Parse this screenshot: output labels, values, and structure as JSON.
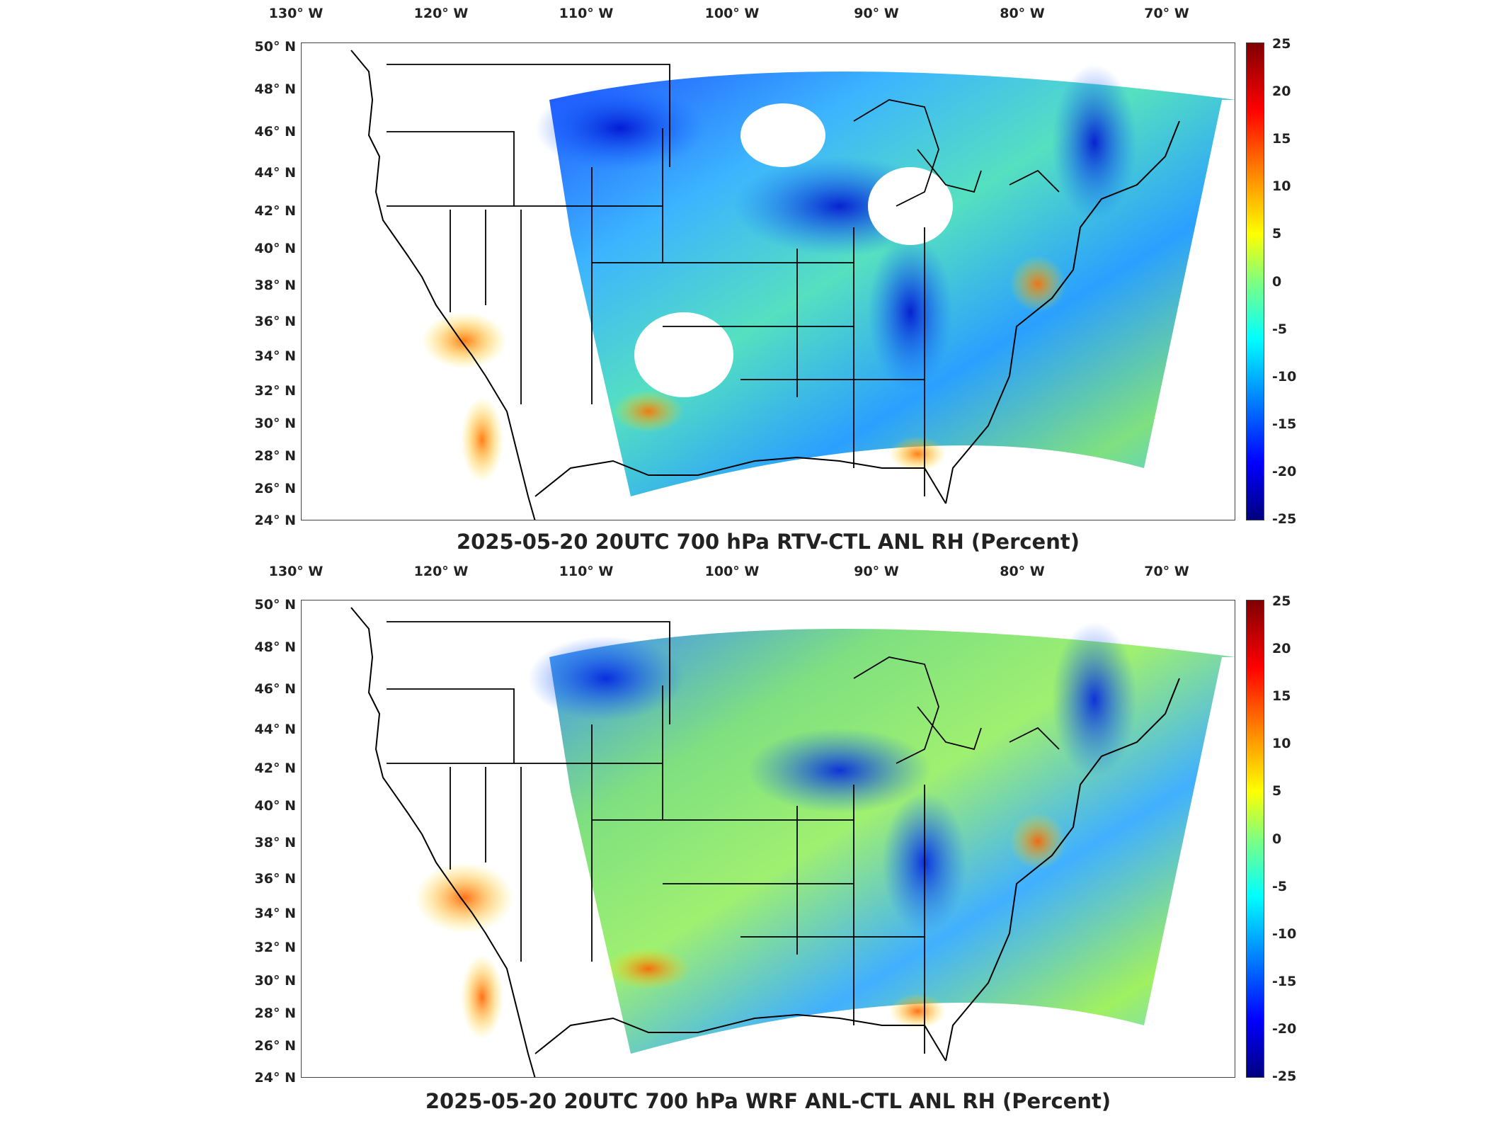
{
  "panels": [
    {
      "title": "2025-05-20 20UTC 700 hPa RTV-CTL ANL RH (Percent)",
      "lon_labels": [
        "130° W",
        "120° W",
        "110° W",
        "100° W",
        "90° W",
        "80° W",
        "70° W"
      ],
      "lat_labels": [
        "50° N",
        "48° N",
        "46° N",
        "44° N",
        "42° N",
        "40° N",
        "38° N",
        "36° N",
        "34° N",
        "32° N",
        "30° N",
        "28° N",
        "26° N",
        "24° N"
      ],
      "colorbar_labels": [
        "25",
        "20",
        "15",
        "10",
        "5",
        "0",
        "-5",
        "-10",
        "-15",
        "-20",
        "-25"
      ]
    },
    {
      "title": "2025-05-20 20UTC 700 hPa WRF ANL-CTL ANL RH (Percent)",
      "lon_labels": [
        "130° W",
        "120° W",
        "110° W",
        "100° W",
        "90° W",
        "80° W",
        "70° W"
      ],
      "lat_labels": [
        "50° N",
        "48° N",
        "46° N",
        "44° N",
        "42° N",
        "40° N",
        "38° N",
        "36° N",
        "34° N",
        "32° N",
        "30° N",
        "28° N",
        "26° N",
        "24° N"
      ],
      "colorbar_labels": [
        "25",
        "20",
        "15",
        "10",
        "5",
        "0",
        "-5",
        "-10",
        "-15",
        "-20",
        "-25"
      ]
    }
  ],
  "colorbar": {
    "min": -25,
    "max": 25,
    "colormap": "jet"
  },
  "colors": {
    "frame": "#444444",
    "coast": "#000000",
    "background": "#ffffff"
  }
}
